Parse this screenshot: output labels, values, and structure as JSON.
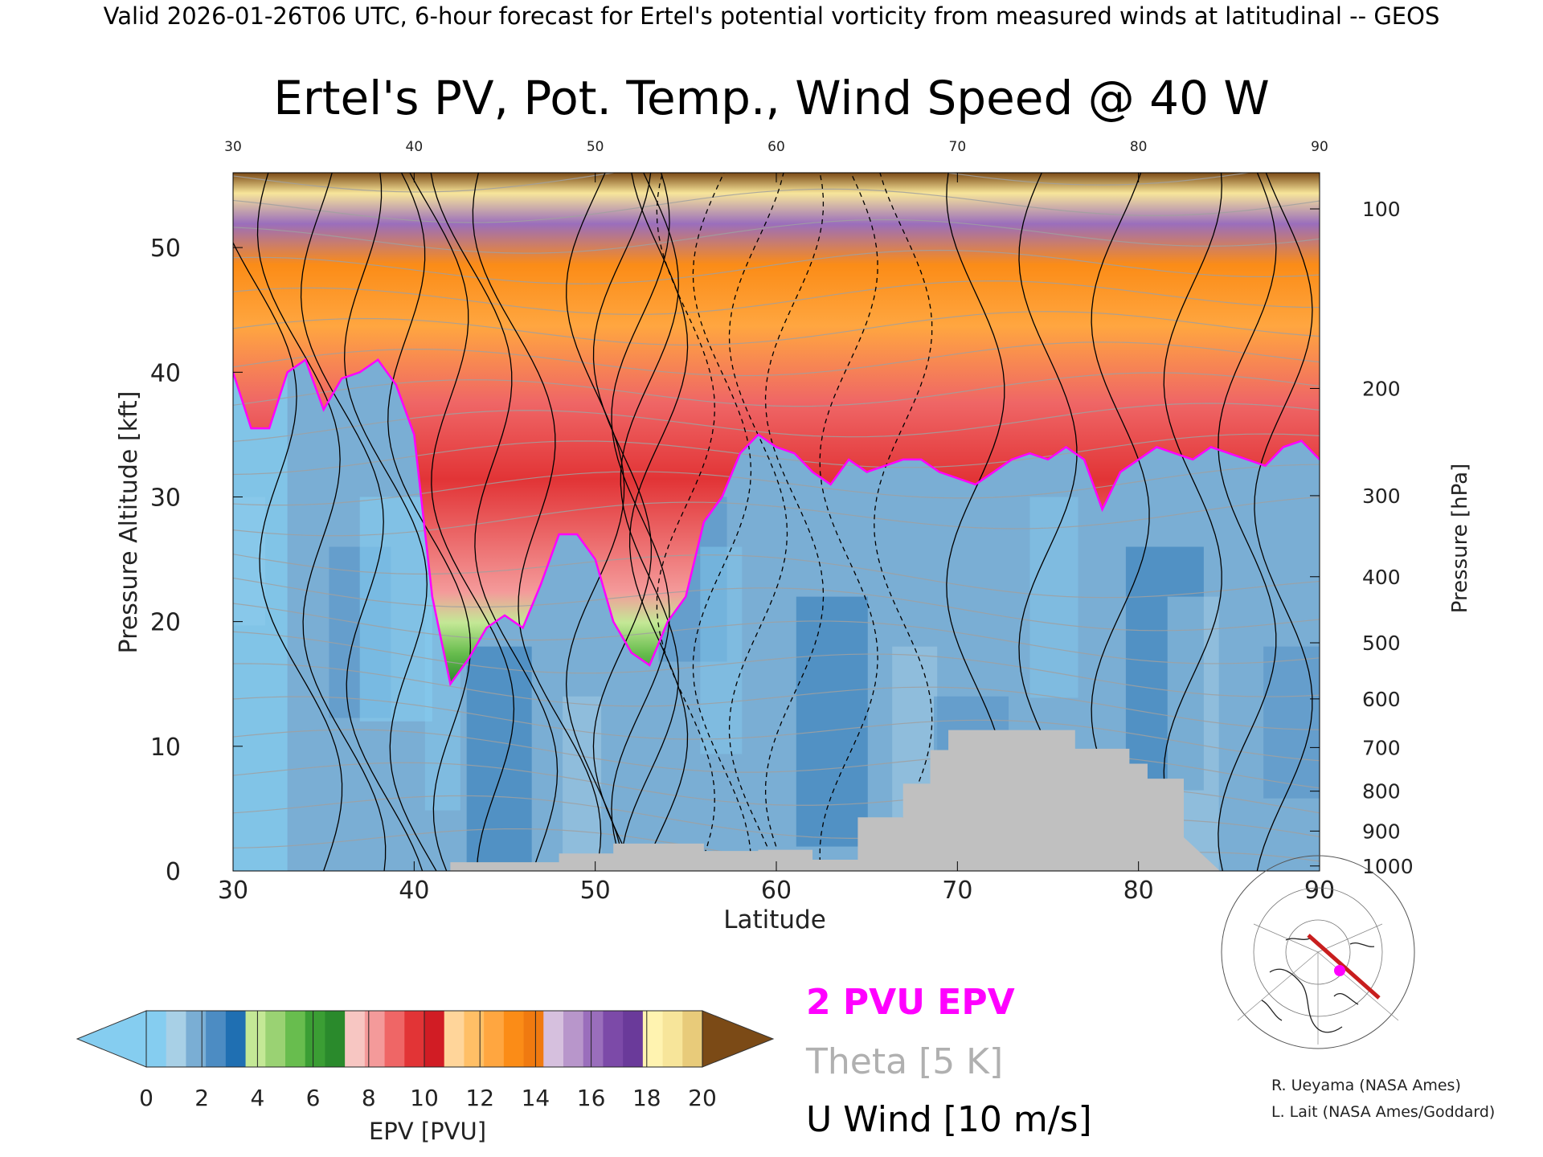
{
  "header": {
    "caption": "Valid 2026-01-26T06 UTC, 6-hour forecast for Ertel's potential vorticity from measured winds at latitudinal -- GEOS",
    "title": "Ertel's PV, Pot. Temp., Wind Speed @ 40 W"
  },
  "chart_data": {
    "type": "heatmap",
    "title": "Ertel's PV, Pot. Temp., Wind Speed @ 40 W",
    "xlabel": "Latitude",
    "ylabel_left": "Pressure Altitude [kft]",
    "ylabel_right": "Pressure [hPa]",
    "xlim": [
      30,
      90
    ],
    "ylim": [
      0,
      56
    ],
    "x_ticks": [
      30,
      40,
      50,
      60,
      70,
      80,
      90
    ],
    "y_ticks_left": [
      0,
      10,
      20,
      30,
      40,
      50
    ],
    "y_ticks_right": [
      {
        "label": "100",
        "kft": 53.1
      },
      {
        "label": "200",
        "kft": 38.7
      },
      {
        "label": "300",
        "kft": 30.1
      },
      {
        "label": "400",
        "kft": 23.6
      },
      {
        "label": "500",
        "kft": 18.3
      },
      {
        "label": "600",
        "kft": 13.8
      },
      {
        "label": "700",
        "kft": 9.9
      },
      {
        "label": "800",
        "kft": 6.4
      },
      {
        "label": "900",
        "kft": 3.2
      },
      {
        "label": "1000",
        "kft": 0.4
      }
    ],
    "tropopause_2pvu": {
      "lat": [
        30,
        31,
        32,
        33,
        34,
        35,
        36,
        37,
        38,
        39,
        40,
        41,
        42,
        43,
        44,
        45,
        46,
        47,
        48,
        49,
        50,
        51,
        52,
        53,
        54,
        55,
        56,
        57,
        58,
        59,
        60,
        61,
        62,
        63,
        64,
        65,
        66,
        67,
        68,
        69,
        70,
        71,
        72,
        73,
        74,
        75,
        76,
        77,
        78,
        79,
        80,
        81,
        82,
        83,
        84,
        85,
        86,
        87,
        88,
        89,
        90
      ],
      "kft": [
        40,
        35.5,
        35.5,
        40,
        41,
        37,
        39.5,
        40,
        41,
        39,
        35,
        22,
        15,
        17,
        19.5,
        20.5,
        19.5,
        23,
        27,
        27,
        25,
        20,
        17.5,
        16.5,
        20,
        22,
        28,
        30,
        33.5,
        35,
        34,
        33.5,
        32,
        31,
        33,
        32,
        32.5,
        33,
        33,
        32,
        31.5,
        31,
        32,
        33,
        33.5,
        33,
        34,
        33,
        29,
        32,
        33,
        34,
        33.5,
        33,
        34,
        33.5,
        33,
        32.5,
        34,
        34.5,
        33
      ]
    },
    "terrain": {
      "lat": [
        30,
        42,
        42,
        48,
        48,
        51,
        51,
        56,
        56,
        59,
        59,
        62,
        62,
        64.5,
        64.5,
        67,
        67,
        68.5,
        68.5,
        69.5,
        69.5,
        76.5,
        76.5,
        79.5,
        79.5,
        80.5,
        80.5,
        82.5,
        82.5,
        84.5
      ],
      "kft": [
        0,
        0,
        0.7,
        0.7,
        1.4,
        1.4,
        2.2,
        2.2,
        1.6,
        1.6,
        1.7,
        1.7,
        0.9,
        0.9,
        4.3,
        4.3,
        7,
        7,
        9.7,
        9.7,
        11.3,
        11.3,
        9.8,
        9.8,
        8.6,
        8.6,
        7.4,
        7.4,
        2.7,
        0
      ]
    },
    "colorbar": {
      "label": "EPV [PVU]",
      "ticks": [
        "0",
        "2",
        "4",
        "6",
        "8",
        "10",
        "12",
        "14",
        "16",
        "18",
        "20"
      ],
      "colors": [
        "#85cdf0",
        "#a8d0e6",
        "#7aaed4",
        "#4c8cc3",
        "#1f6fb2",
        "#c4e896",
        "#9ad273",
        "#68bd4e",
        "#3b9e34",
        "#2a8a2c",
        "#f7c6c2",
        "#f49a9a",
        "#ef6666",
        "#e23436",
        "#d11c24",
        "#ffd59a",
        "#ffbf66",
        "#ffa640",
        "#fb8c17",
        "#f07a10",
        "#d6c0de",
        "#b896cb",
        "#9a6ebc",
        "#7c4aa8",
        "#6a3a9a",
        "#fff3b0",
        "#f7e59a",
        "#e8cb7a"
      ],
      "under_color": "#85cdf0",
      "over_color": "#7b4a16"
    },
    "legend": [
      {
        "text": "2 PVU EPV",
        "color": "#ff00ff"
      },
      {
        "text": "Theta [5 K]",
        "color": "#b0b0b0"
      },
      {
        "text": "U Wind [10 m/s]",
        "color": "#000000"
      }
    ],
    "terrain_color": "#c0c0c0",
    "tropopause_color": "#ff00ff"
  },
  "credits": {
    "line1": "R. Ueyama (NASA Ames)",
    "line2": "L. Lait (NASA Ames/Goddard)"
  },
  "inset_map": {
    "description_icon": "polar-stereographic-map-icon",
    "track_color": "#c81e1e",
    "marker_color": "#ff00ff"
  }
}
